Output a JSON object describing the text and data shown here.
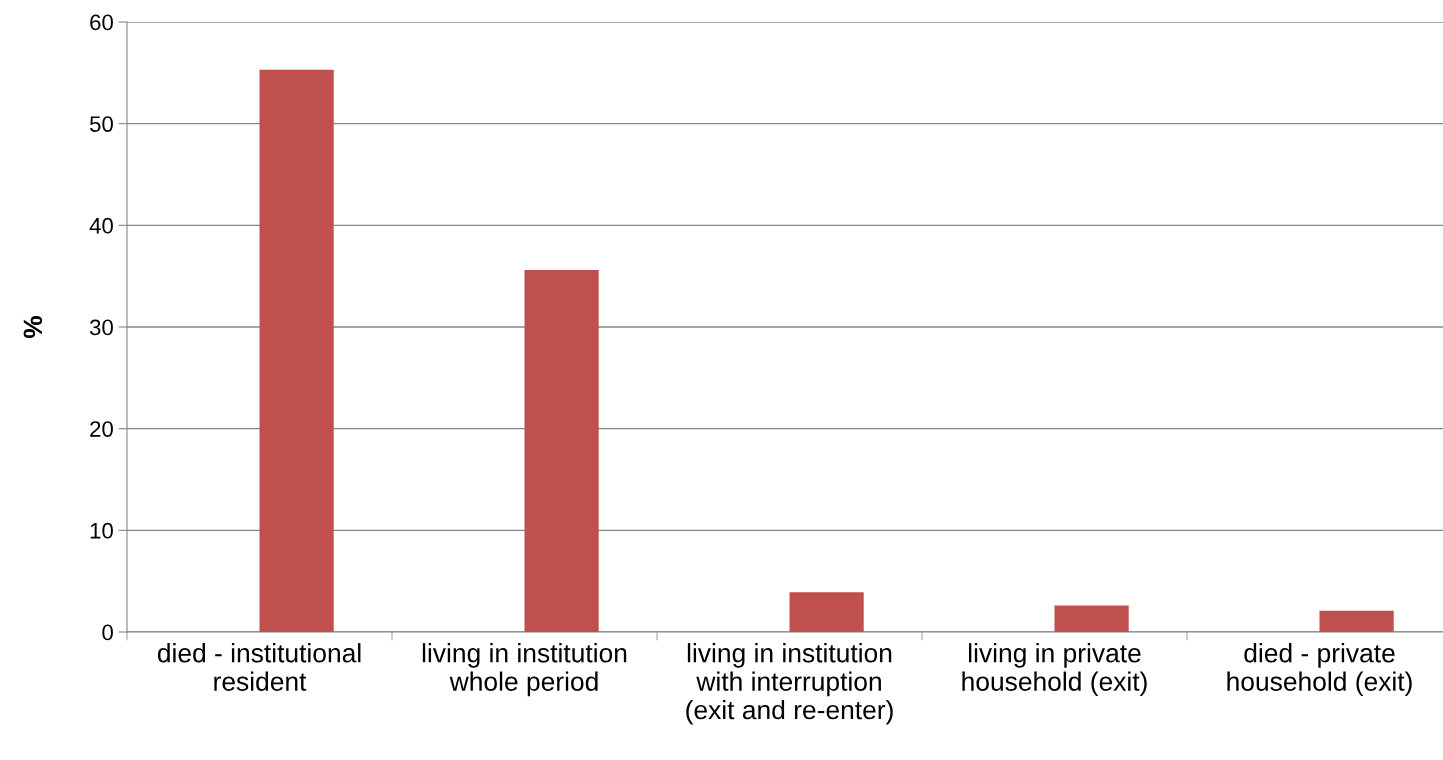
{
  "chart_data": {
    "type": "bar",
    "ylabel": "%",
    "categories": [
      "died - institutional\nresident",
      "living in institution\nwhole period",
      "living in institution\nwith interruption\n(exit and re-enter)",
      "living in private\nhousehold (exit)",
      "died - private\nhousehold (exit)"
    ],
    "values": [
      55.3,
      35.6,
      3.9,
      2.6,
      2.1
    ],
    "color": "#c0504d",
    "ylim": [
      0,
      60
    ],
    "yticks": [
      0,
      10,
      20,
      30,
      40,
      50,
      60
    ],
    "grid": "y",
    "legend": false
  }
}
